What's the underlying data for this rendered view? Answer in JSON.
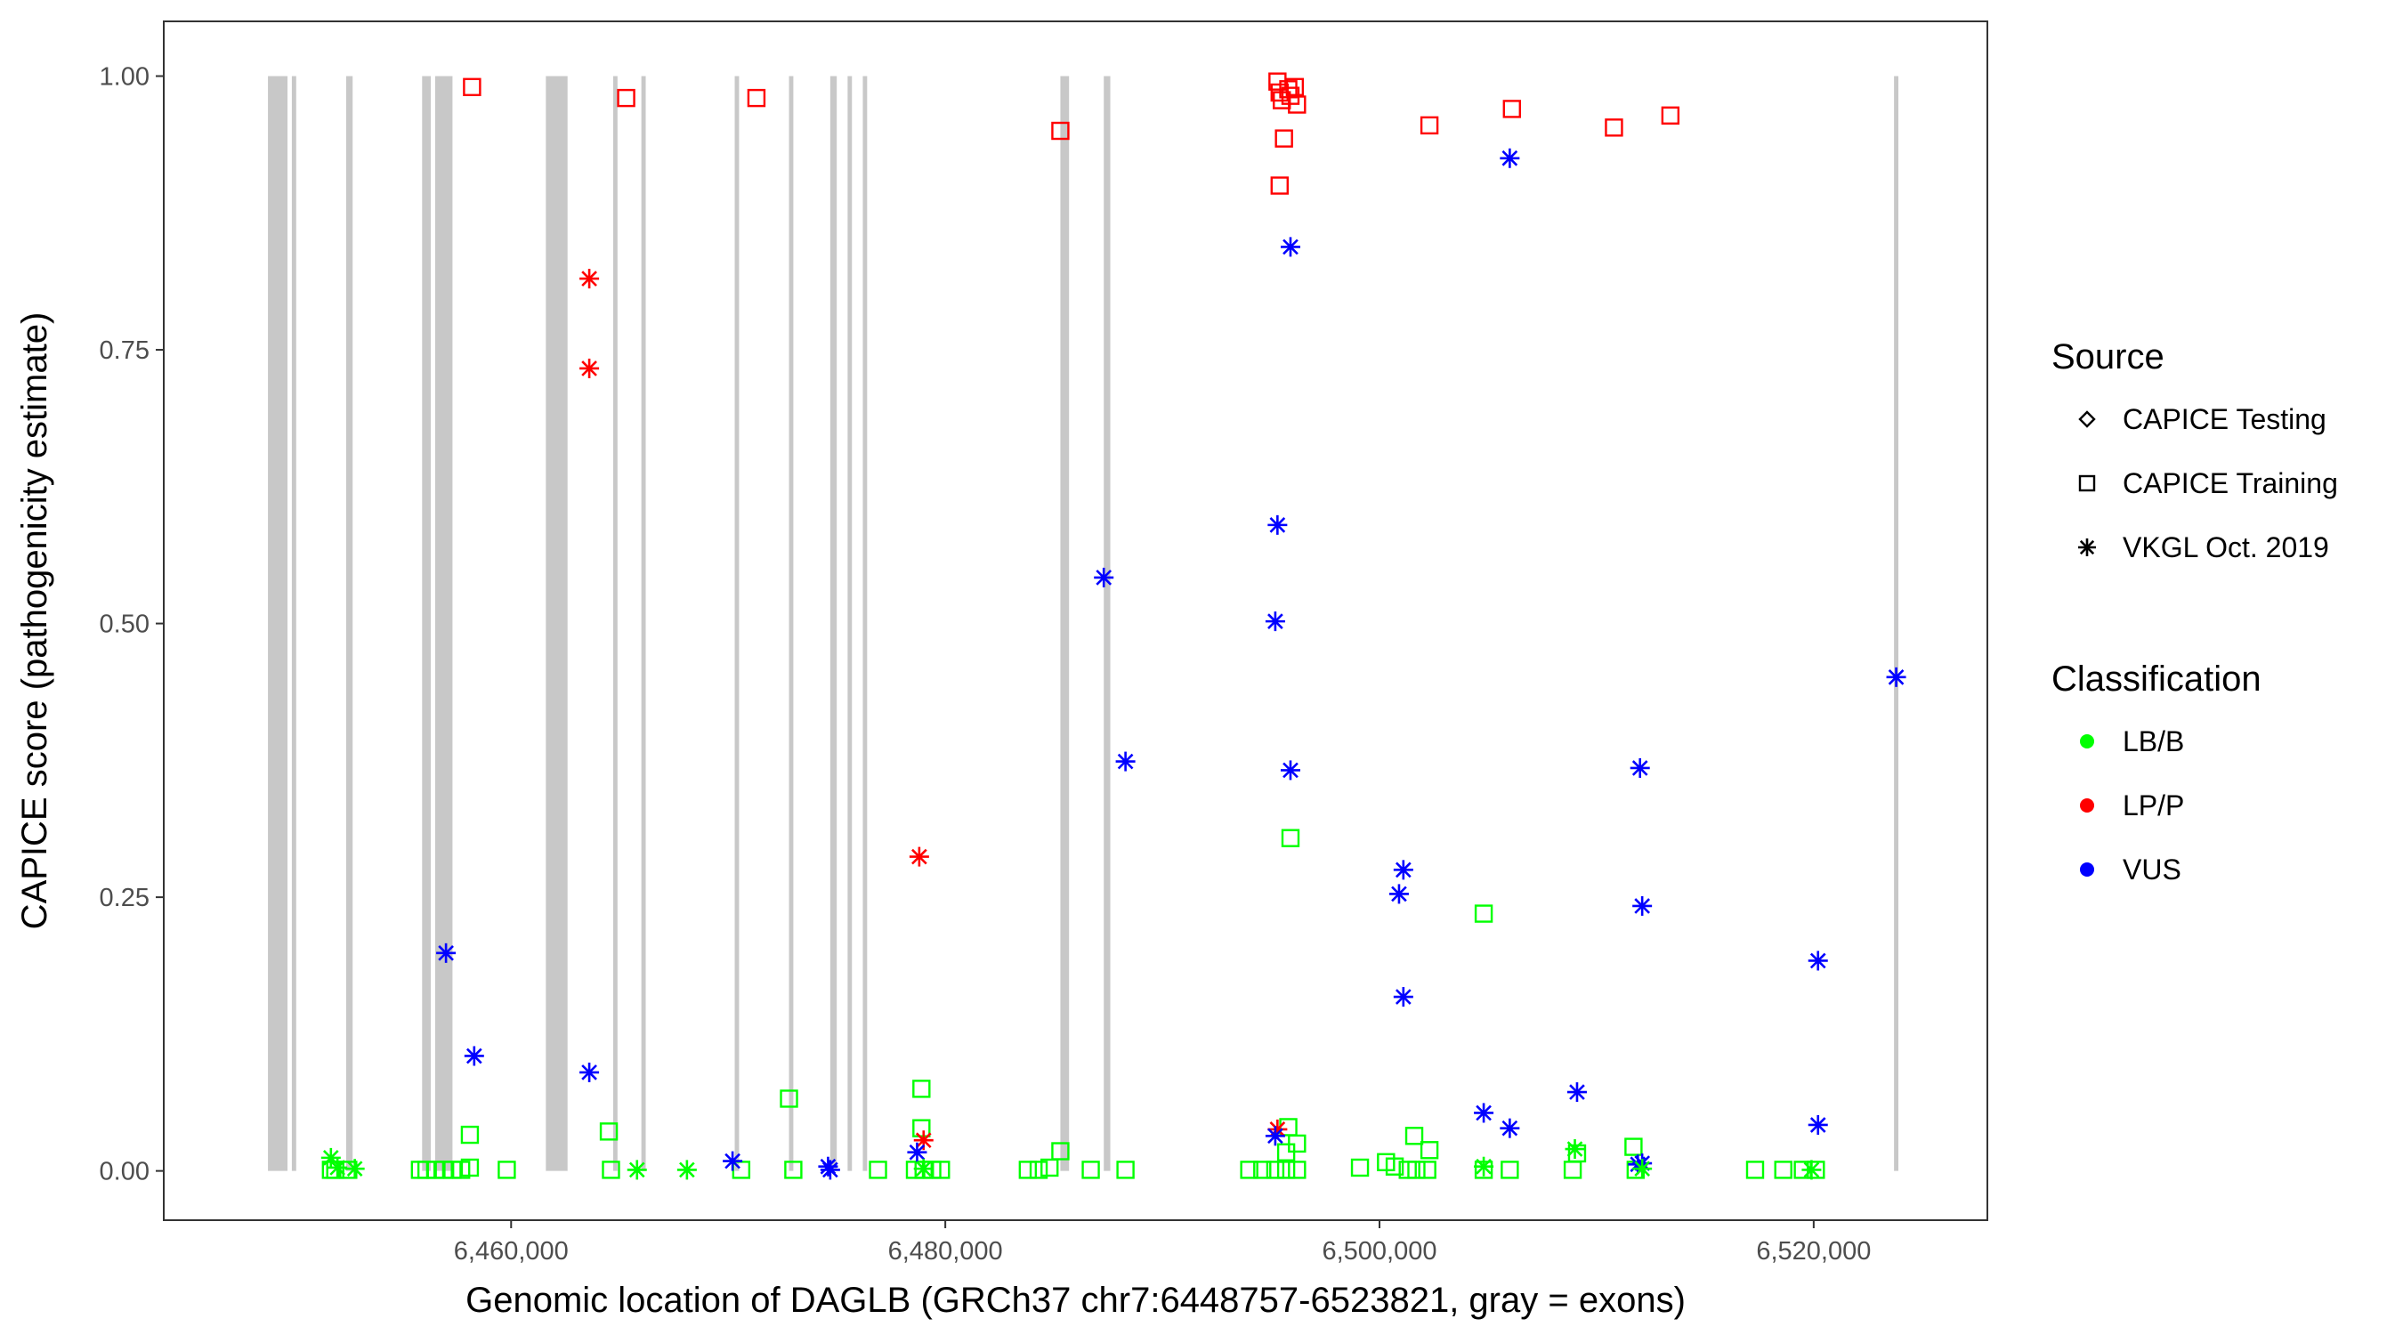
{
  "chart_data": {
    "type": "scatter",
    "xlabel": "Genomic location of DAGLB (GRCh37 chr7:6448757-6523821, gray = exons)",
    "ylabel": "CAPICE score (pathogenicity estimate)",
    "xlim": [
      6444000,
      6528000
    ],
    "ylim": [
      -0.045,
      1.05
    ],
    "x_ticks": [
      6460000,
      6480000,
      6500000,
      6520000
    ],
    "x_tick_labels": [
      "6,460,000",
      "6,480,000",
      "6,500,000",
      "6,520,000"
    ],
    "y_ticks": [
      0,
      0.25,
      0.5,
      0.75,
      1.0
    ],
    "y_tick_labels": [
      "0.00",
      "0.25",
      "0.50",
      "0.75",
      "1.00"
    ],
    "grid": false,
    "legend_position": "right",
    "exons": [
      [
        6448800,
        6449700
      ],
      [
        6449900,
        6450100
      ],
      [
        6452400,
        6452700
      ],
      [
        6455900,
        6456300
      ],
      [
        6456500,
        6457300
      ],
      [
        6461600,
        6462600
      ],
      [
        6464700,
        6464900
      ],
      [
        6466000,
        6466200
      ],
      [
        6470300,
        6470500
      ],
      [
        6472800,
        6473000
      ],
      [
        6474700,
        6475000
      ],
      [
        6475500,
        6475700
      ],
      [
        6476200,
        6476400
      ],
      [
        6485300,
        6485700
      ],
      [
        6487300,
        6487600
      ],
      [
        6523700,
        6523900
      ]
    ],
    "exon_color": "#c8c8c8",
    "legend": {
      "source_title": "Source",
      "source_items": [
        {
          "label": "CAPICE Testing",
          "shape": "diamond"
        },
        {
          "label": "CAPICE Training",
          "shape": "square"
        },
        {
          "label": "VKGL Oct. 2019",
          "shape": "asterisk"
        }
      ],
      "class_title": "Classification",
      "class_items": [
        {
          "label": "LB/B",
          "color": "#00ff00"
        },
        {
          "label": "LP/P",
          "color": "#ff0000"
        },
        {
          "label": "VUS",
          "color": "#0000ff"
        }
      ]
    },
    "series": [
      {
        "source": "CAPICE Training",
        "classification": "LP/P",
        "shape": "square",
        "color": "#ff0000",
        "points": [
          [
            6458200,
            0.99
          ],
          [
            6465300,
            0.98
          ],
          [
            6471300,
            0.98
          ],
          [
            6485300,
            0.95
          ],
          [
            6495300,
            0.995
          ],
          [
            6495400,
            0.985
          ],
          [
            6495500,
            0.978
          ],
          [
            6495800,
            0.988
          ],
          [
            6495900,
            0.982
          ],
          [
            6496100,
            0.99
          ],
          [
            6496200,
            0.974
          ],
          [
            6495600,
            0.943
          ],
          [
            6495400,
            0.9
          ],
          [
            6502300,
            0.955
          ],
          [
            6506100,
            0.97
          ],
          [
            6510800,
            0.953
          ],
          [
            6513400,
            0.964
          ]
        ]
      },
      {
        "source": "CAPICE Training",
        "classification": "LB/B",
        "shape": "square",
        "color": "#00ff00",
        "points": [
          [
            6451700,
            0.001
          ],
          [
            6451900,
            0.001
          ],
          [
            6452500,
            0.001
          ],
          [
            6455800,
            0.001
          ],
          [
            6456100,
            0.001
          ],
          [
            6456500,
            0.001
          ],
          [
            6456900,
            0.001
          ],
          [
            6457300,
            0.001
          ],
          [
            6457700,
            0.001
          ],
          [
            6458100,
            0.003
          ],
          [
            6459800,
            0.001
          ],
          [
            6464600,
            0.001
          ],
          [
            6458100,
            0.033
          ],
          [
            6464500,
            0.036
          ],
          [
            6470600,
            0.001
          ],
          [
            6472800,
            0.066
          ],
          [
            6473000,
            0.001
          ],
          [
            6476900,
            0.001
          ],
          [
            6478900,
            0.075
          ],
          [
            6478900,
            0.039
          ],
          [
            6479000,
            0.001
          ],
          [
            6479400,
            0.001
          ],
          [
            6479800,
            0.001
          ],
          [
            6478600,
            0.001
          ],
          [
            6483800,
            0.001
          ],
          [
            6484300,
            0.001
          ],
          [
            6484800,
            0.003
          ],
          [
            6485300,
            0.018
          ],
          [
            6486700,
            0.001
          ],
          [
            6488300,
            0.001
          ],
          [
            6494000,
            0.001
          ],
          [
            6494600,
            0.001
          ],
          [
            6495200,
            0.001
          ],
          [
            6495700,
            0.001
          ],
          [
            6496200,
            0.001
          ],
          [
            6495700,
            0.017
          ],
          [
            6495800,
            0.04
          ],
          [
            6496200,
            0.025
          ],
          [
            6495900,
            0.304
          ],
          [
            6499100,
            0.003
          ],
          [
            6500300,
            0.008
          ],
          [
            6500700,
            0.004
          ],
          [
            6501300,
            0.001
          ],
          [
            6501700,
            0.001
          ],
          [
            6502200,
            0.001
          ],
          [
            6501600,
            0.032
          ],
          [
            6502300,
            0.019
          ],
          [
            6504800,
            0.235
          ],
          [
            6504800,
            0.001
          ],
          [
            6506000,
            0.001
          ],
          [
            6508900,
            0.001
          ],
          [
            6509100,
            0.016
          ],
          [
            6511700,
            0.022
          ],
          [
            6511800,
            0.001
          ],
          [
            6517300,
            0.001
          ],
          [
            6518600,
            0.001
          ],
          [
            6519500,
            0.001
          ],
          [
            6520100,
            0.001
          ]
        ]
      },
      {
        "source": "VKGL Oct. 2019",
        "classification": "LP/P",
        "shape": "asterisk",
        "color": "#ff0000",
        "points": [
          [
            6463600,
            0.815
          ],
          [
            6463600,
            0.733
          ],
          [
            6478800,
            0.287
          ],
          [
            6479000,
            0.028
          ],
          [
            6495300,
            0.038
          ]
        ]
      },
      {
        "source": "VKGL Oct. 2019",
        "classification": "VUS",
        "shape": "asterisk",
        "color": "#0000ff",
        "points": [
          [
            6457000,
            0.199
          ],
          [
            6458300,
            0.105
          ],
          [
            6463600,
            0.09
          ],
          [
            6470200,
            0.009
          ],
          [
            6474600,
            0.004
          ],
          [
            6474700,
            0.001
          ],
          [
            6478700,
            0.017
          ],
          [
            6487300,
            0.542
          ],
          [
            6488300,
            0.374
          ],
          [
            6495300,
            0.59
          ],
          [
            6495200,
            0.502
          ],
          [
            6495900,
            0.844
          ],
          [
            6495900,
            0.366
          ],
          [
            6495200,
            0.032
          ],
          [
            6506000,
            0.925
          ],
          [
            6500900,
            0.253
          ],
          [
            6501100,
            0.275
          ],
          [
            6501100,
            0.159
          ],
          [
            6504800,
            0.053
          ],
          [
            6506000,
            0.039
          ],
          [
            6509100,
            0.072
          ],
          [
            6512000,
            0.368
          ],
          [
            6512100,
            0.242
          ],
          [
            6511900,
            0.006
          ],
          [
            6512100,
            0.007
          ],
          [
            6520200,
            0.192
          ],
          [
            6520200,
            0.042
          ],
          [
            6523800,
            0.451
          ]
        ]
      },
      {
        "source": "VKGL Oct. 2019",
        "classification": "LB/B",
        "shape": "asterisk",
        "color": "#00ff00",
        "points": [
          [
            6451700,
            0.012
          ],
          [
            6452000,
            0.003
          ],
          [
            6452800,
            0.002
          ],
          [
            6465800,
            0.001
          ],
          [
            6468100,
            0.001
          ],
          [
            6479000,
            0.002
          ],
          [
            6504800,
            0.004
          ],
          [
            6509000,
            0.02
          ],
          [
            6512100,
            0.002
          ],
          [
            6519900,
            0.001
          ]
        ]
      }
    ]
  }
}
